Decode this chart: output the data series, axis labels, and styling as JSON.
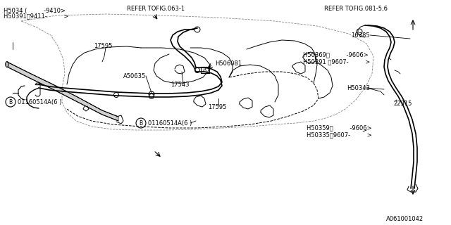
{
  "bg_color": "#ffffff",
  "line_color": "#000000",
  "text_color": "#000000",
  "title": "A061001042",
  "labels": {
    "refer_top_left": "REFER TOFIG.063-1",
    "refer_top_right": "REFER TOFIG.081-5,6",
    "h5034": "H5034 (         -9410>",
    "h50391_top": "H50391〨9411-         >",
    "h16385": "16385",
    "h50369": "H50369〨         -9606>",
    "h50391_mid": "H50391 〨9607-         >",
    "h50343": "H50343",
    "h22315": "22315",
    "h50359": "H50359〨         -9606>",
    "h50335": "H50335〨9607-         >",
    "h17595_top": "17595",
    "h17595_bot": "17595",
    "h506081": "H506081",
    "a_box": "A",
    "a50635": "A50635",
    "h17543": "17543",
    "b_label_left": "B",
    "b_text_left": "01160514A（6 ）",
    "b_label_bot": "B",
    "b_text_bot": "01160514A（6 ）"
  },
  "figsize": [
    6.4,
    3.2
  ],
  "dpi": 100
}
